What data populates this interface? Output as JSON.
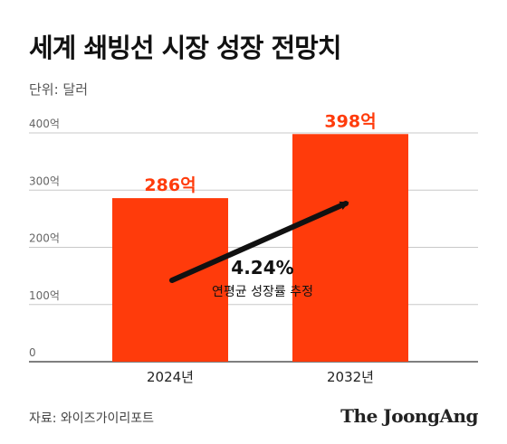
{
  "title": "세계 쇄빙선 시장 성장 전망치",
  "unit_label": "단위: 달러",
  "source": "자료: 와이즈가이리포트",
  "brand": "The JoongAng",
  "chart_data": {
    "type": "bar",
    "title": "세계 쇄빙선 시장 성장 전망치",
    "categories": [
      "2024년",
      "2032년"
    ],
    "values": [
      286,
      398
    ],
    "value_labels": [
      "286억",
      "398억"
    ],
    "ylim": [
      0,
      400
    ],
    "yticks": [
      0,
      100,
      200,
      300,
      400
    ],
    "ytick_labels": [
      "0",
      "100억",
      "200억",
      "300억",
      "400억"
    ],
    "grid": true,
    "bar_color": "#ff3b0b",
    "value_label_color": "#ff3b0b",
    "annotation": {
      "value": "4.24%",
      "text": "연평균 성장률 추정"
    }
  }
}
